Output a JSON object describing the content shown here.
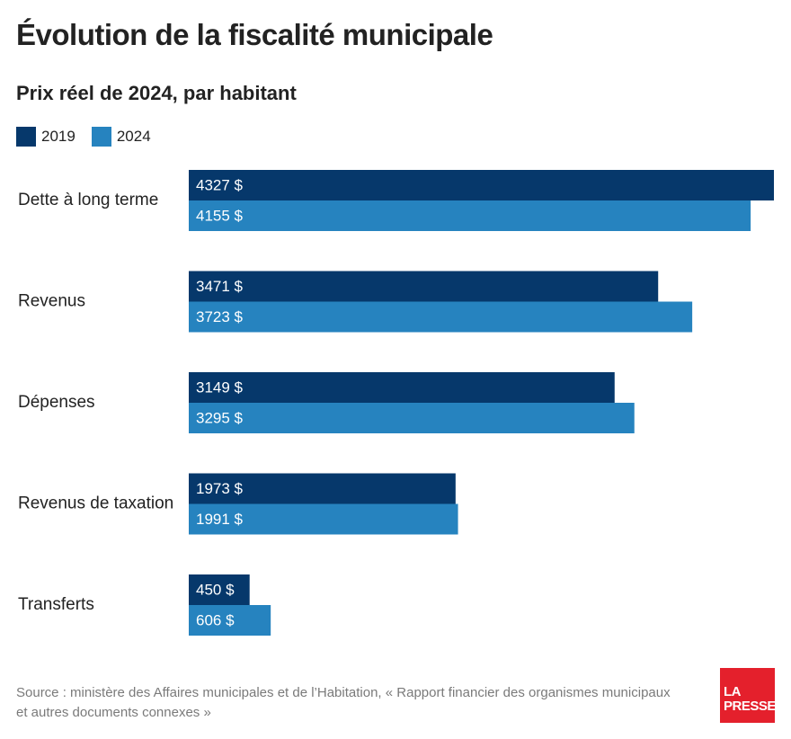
{
  "title": "Évolution de la fiscalité municipale",
  "subtitle": "Prix réel de 2024, par habitant",
  "legend": [
    {
      "label": "2019",
      "color": "#06386b"
    },
    {
      "label": "2024",
      "color": "#2683bf"
    }
  ],
  "chart_data": {
    "type": "bar",
    "orientation": "horizontal",
    "categories": [
      "Dette à long terme",
      "Revenus",
      "Dépenses",
      "Revenus de taxation",
      "Transferts"
    ],
    "series": [
      {
        "name": "2019",
        "color": "#06386b",
        "values": [
          4327,
          3471,
          3149,
          1973,
          450
        ]
      },
      {
        "name": "2024",
        "color": "#2683bf",
        "values": [
          4155,
          3723,
          3295,
          1991,
          606
        ]
      }
    ],
    "value_suffix": " $",
    "xlim": [
      0,
      4327
    ],
    "grid": false,
    "legend_position": "top-left"
  },
  "source": "Source : ministère des Affaires municipales et de l’Habitation, « Rapport financier des organismes municipaux et autres documents connexes »",
  "logo": {
    "line1": "LA",
    "line2": "PRESSE"
  }
}
